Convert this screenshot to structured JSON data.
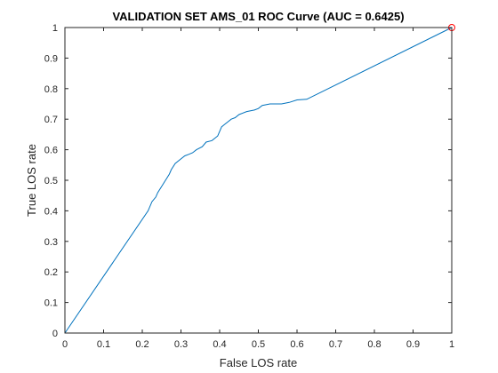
{
  "chart_data": {
    "type": "line",
    "title": "VALIDATION SET AMS_01 ROC Curve (AUC = 0.6425)",
    "xlabel": "False LOS rate",
    "ylabel": "True LOS rate",
    "xlim": [
      0,
      1
    ],
    "ylim": [
      0,
      1
    ],
    "xticks": [
      "0",
      "0.1",
      "0.2",
      "0.3",
      "0.4",
      "0.5",
      "0.6",
      "0.7",
      "0.8",
      "0.9",
      "1"
    ],
    "yticks": [
      "0",
      "0.1",
      "0.2",
      "0.3",
      "0.4",
      "0.5",
      "0.6",
      "0.7",
      "0.8",
      "0.9",
      "1"
    ],
    "grid": false,
    "line_color": "#0072BD",
    "marker_color": "#FF0000",
    "series": [
      {
        "x": [
          0,
          0.215,
          0.225,
          0.235,
          0.24,
          0.25,
          0.26,
          0.27,
          0.275,
          0.285,
          0.3,
          0.31,
          0.32,
          0.33,
          0.34,
          0.355,
          0.365,
          0.38,
          0.395,
          0.405,
          0.41,
          0.42,
          0.43,
          0.44,
          0.45,
          0.47,
          0.49,
          0.5,
          0.51,
          0.53,
          0.56,
          0.58,
          0.6,
          0.625,
          1.0
        ],
        "y": [
          0,
          0.4,
          0.43,
          0.445,
          0.46,
          0.48,
          0.5,
          0.52,
          0.535,
          0.555,
          0.57,
          0.58,
          0.585,
          0.59,
          0.6,
          0.61,
          0.625,
          0.63,
          0.645,
          0.675,
          0.68,
          0.69,
          0.7,
          0.705,
          0.715,
          0.725,
          0.73,
          0.735,
          0.745,
          0.75,
          0.75,
          0.755,
          0.763,
          0.765,
          1.0
        ]
      }
    ],
    "marker_point": {
      "x": 1,
      "y": 1
    }
  }
}
